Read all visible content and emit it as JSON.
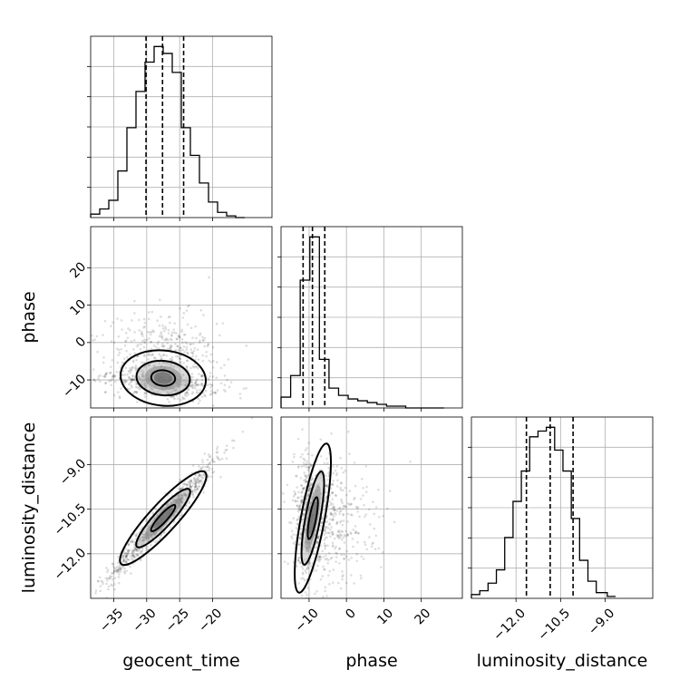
{
  "chart_data": {
    "type": "corner",
    "parameters": [
      "geocent_time",
      "phase",
      "luminosity_distance"
    ],
    "axis_labels": {
      "x": [
        "geocent_time",
        "phase",
        "luminosity_distance"
      ],
      "y": [
        "",
        "phase",
        "luminosity_distance"
      ]
    },
    "ranges": {
      "geocent_time": [
        -38.5,
        -11.0
      ],
      "phase": [
        -17.5,
        31.0
      ],
      "luminosity_distance": [
        -13.5,
        -7.4
      ]
    },
    "ticks": {
      "geocent_time": [
        -35,
        -30,
        -25,
        -20
      ],
      "phase": [
        -10,
        0,
        10,
        20
      ],
      "luminosity_distance": [
        -12.0,
        -10.5,
        -9.0
      ]
    },
    "tick_labels": {
      "geocent_time": [
        "−35",
        "−30",
        "−25",
        "−20"
      ],
      "phase": [
        "−10",
        "0",
        "10",
        "20"
      ],
      "luminosity_distance": [
        "−12.0",
        "−10.5",
        "−9.0"
      ]
    },
    "grid": true,
    "histograms": [
      {
        "parameter": "geocent_time",
        "bin_edges": [
          -38.5,
          -37.125,
          -35.75,
          -34.375,
          -33.0,
          -31.625,
          -30.25,
          -28.875,
          -27.5,
          -26.125,
          -24.75,
          -23.375,
          -22.0,
          -20.625,
          -19.25,
          -17.875,
          -16.5,
          -15.125
        ],
        "counts": [
          2,
          5,
          10,
          27,
          52,
          73,
          90,
          99,
          95,
          84,
          52,
          36,
          20,
          9,
          3,
          1,
          0
        ],
        "quantiles": [
          -30.1,
          -27.6,
          -24.4
        ]
      },
      {
        "parameter": "phase",
        "bin_edges": [
          -17.5,
          -14.93,
          -12.37,
          -9.8,
          -7.24,
          -4.67,
          -2.11,
          0.46,
          3.03,
          5.59,
          8.16,
          10.72,
          13.29,
          15.85,
          18.42,
          20.99,
          23.55,
          26.12
        ],
        "counts": [
          6,
          18,
          71,
          95,
          27,
          11,
          7,
          5,
          4,
          3,
          2,
          1,
          1,
          0,
          0,
          0,
          0
        ],
        "quantiles": [
          -11.6,
          -9.1,
          -5.8
        ]
      },
      {
        "parameter": "luminosity_distance",
        "bin_edges": [
          -13.5,
          -13.22,
          -12.94,
          -12.66,
          -12.38,
          -12.1,
          -11.82,
          -11.54,
          -11.26,
          -10.98,
          -10.7,
          -10.42,
          -10.14,
          -9.86,
          -9.58,
          -9.3,
          -8.93,
          -8.65
        ],
        "counts": [
          2,
          4,
          8,
          15,
          32,
          51,
          67,
          85,
          88,
          90,
          78,
          67,
          42,
          20,
          9,
          3,
          1
        ],
        "quantiles": [
          -11.65,
          -10.85,
          -10.08
        ]
      }
    ],
    "scatter_2d": [
      {
        "x": "geocent_time",
        "y": "phase",
        "mean": [
          -27.5,
          -9.5
        ],
        "std": [
          4.2,
          5.2
        ],
        "correlation": -0.15
      },
      {
        "x": "geocent_time",
        "y": "luminosity_distance",
        "mean": [
          -27.5,
          -10.8
        ],
        "std": [
          4.2,
          1.05
        ],
        "correlation": 0.97
      },
      {
        "x": "phase",
        "y": "luminosity_distance",
        "mean": [
          -9.0,
          -10.8
        ],
        "std": [
          4.5,
          1.05
        ],
        "correlation": -0.1
      }
    ],
    "colors": {
      "line": "#000000",
      "grid": "#b0b0b0",
      "points": "#000000"
    }
  }
}
